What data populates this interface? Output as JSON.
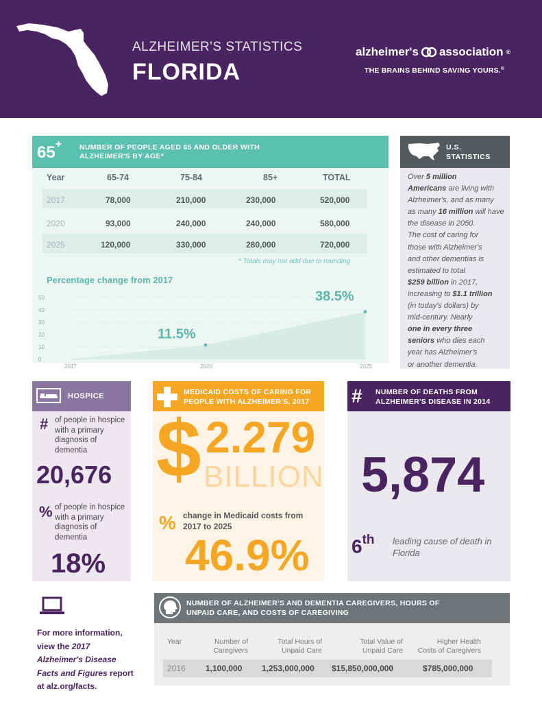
{
  "header": {
    "subtitle": "ALZHEIMER'S STATISTICS",
    "title": "FLORIDA",
    "brand_left": "alzheimer's",
    "brand_right": "association",
    "brand_mark": "®",
    "tagline": "THE BRAINS BEHIND SAVING YOURS.",
    "tagline_mark": "®",
    "colors": {
      "purple": "#4a2460",
      "teal": "#5bc0b0",
      "orange": "#f5a623",
      "gray": "#707477"
    }
  },
  "age_section": {
    "badge": "65",
    "badge_plus": "+",
    "title": "NUMBER OF PEOPLE AGED 65 AND OLDER WITH ALZHEIMER'S BY AGE*",
    "headers": [
      "Year",
      "65-74",
      "75-84",
      "85+",
      "TOTAL"
    ],
    "rows": [
      [
        "2017",
        "78,000",
        "210,000",
        "230,000",
        "520,000"
      ],
      [
        "2020",
        "93,000",
        "240,000",
        "240,000",
        "580,000"
      ],
      [
        "2025",
        "120,000",
        "330,000",
        "280,000",
        "720,000"
      ]
    ],
    "note": "* Totals may not add due to rounding",
    "chart_title": "Percentage change from 2017"
  },
  "chart_data": {
    "type": "area",
    "title": "Percentage change from 2017",
    "x": [
      "2017",
      "2020",
      "2025"
    ],
    "values": [
      0,
      11.5,
      38.5
    ],
    "data_labels": [
      "",
      "11.5%",
      "38.5%"
    ],
    "y_ticks": [
      "0",
      "10",
      "20",
      "30",
      "40",
      "50"
    ],
    "ylim": [
      0,
      50
    ],
    "grid": true
  },
  "us_stats": {
    "title_1": "U.S.",
    "title_2": "STATISTICS",
    "lines": [
      "Over 5 million",
      "Americans are living with",
      "Alzheimer's, and as many",
      "as 16 million will have",
      "the disease in 2050.",
      "The cost of caring for",
      "those with Alzheimer's",
      "and other dementias is",
      "estimated to total",
      "$259 billion in 2017,",
      "increasing to $1.1 trillion",
      "(in today's dollars) by",
      "mid-century. Nearly",
      "one in every three",
      "seniors who dies each",
      "year has Alzheimer's",
      "or another dementia."
    ]
  },
  "hospice": {
    "title": "HOSPICE",
    "count_symbol": "#",
    "count_label": "of people in hospice with a primary diagnosis of dementia",
    "count_value": "20,676",
    "pct_symbol": "%",
    "pct_label": "of people in hospice with a primary diagnosis of dementia",
    "pct_value": "18%"
  },
  "medicaid": {
    "title": "MEDICAID COSTS OF CARING FOR PEOPLE WITH ALZHEIMER'S, 2017",
    "currency": "$",
    "amount": "2.279",
    "unit": "BILLION",
    "change_symbol": "%",
    "change_label": "change in Medicaid costs from 2017 to 2025",
    "change_value": "46.9%"
  },
  "deaths": {
    "symbol": "#",
    "title": "NUMBER OF DEATHS FROM ALZHEIMER'S DISEASE IN 2014",
    "value": "5,874",
    "rank": "6",
    "rank_suffix": "th",
    "rank_label": "leading cause of death in Florida"
  },
  "info": {
    "line1": "For more information,",
    "line2_pre": "view the ",
    "line2_em": "2017",
    "line3_em": "Alzheimer's Disease",
    "line4_em": "Facts and Figures",
    "line4_post": " report",
    "line5": "at alz.org/facts."
  },
  "caregivers": {
    "title": "NUMBER OF ALZHEIMER'S AND DEMENTIA CAREGIVERS, HOURS OF UNPAID CARE, AND COSTS OF CAREGIVING",
    "headers": [
      [
        "Year",
        ""
      ],
      [
        "Number of",
        "Caregivers"
      ],
      [
        "Total Hours of",
        "Unpaid Care"
      ],
      [
        "Total Value of",
        "Unpaid Care"
      ],
      [
        "Higher Health",
        "Costs of Caregivers"
      ]
    ],
    "row": [
      "2016",
      "1,100,000",
      "1,253,000,000",
      "$15,850,000,000",
      "$785,000,000"
    ]
  }
}
